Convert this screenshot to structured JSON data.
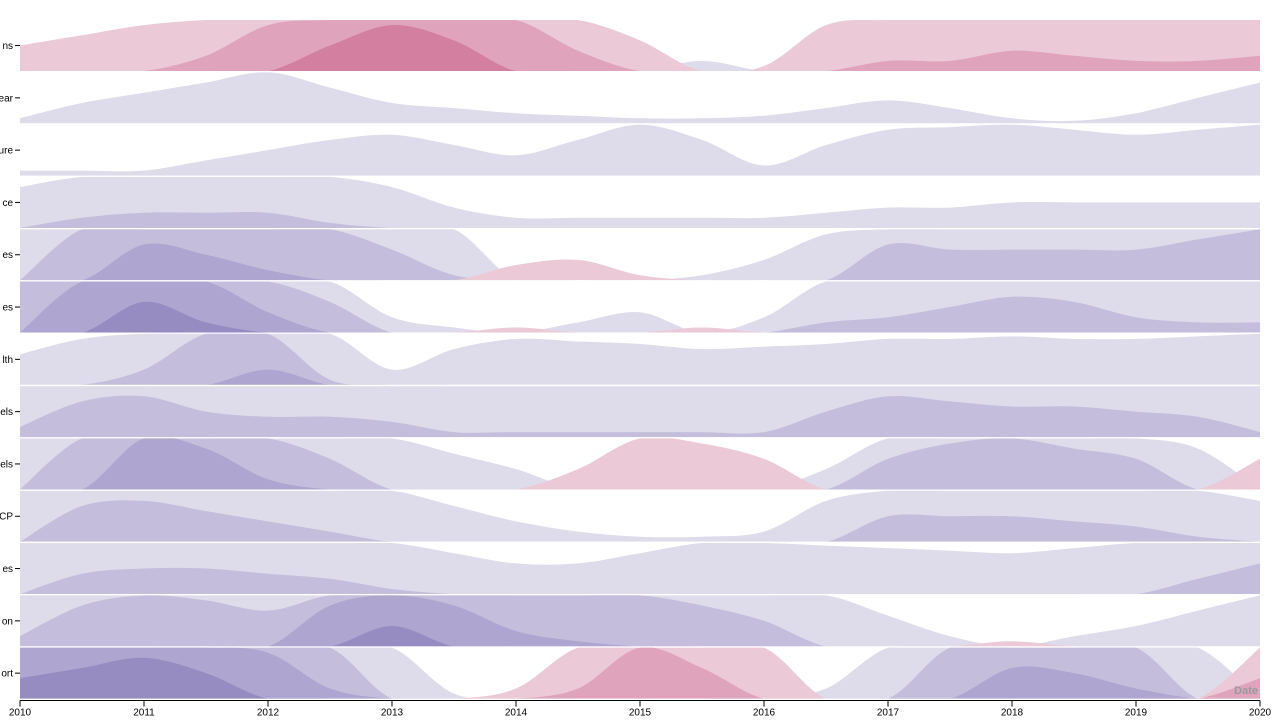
{
  "chart_data": {
    "type": "horizon",
    "x_axis_title": "Date",
    "x_domain": [
      "2010",
      "2020"
    ],
    "x_ticks": [
      "2010",
      "2011",
      "2012",
      "2013",
      "2014",
      "2015",
      "2016",
      "2017",
      "2018",
      "2019",
      "2020"
    ],
    "band_colors": {
      "negative": [
        "#dedbeb",
        "#c4bedc",
        "#aea5d0",
        "#968cc2"
      ],
      "positive": [
        "#ebc9d6",
        "#dfa4bb",
        "#d380a0"
      ]
    },
    "y_band_size": 1,
    "sample_years": [
      2010,
      2010.5,
      2011,
      2011.5,
      2012,
      2012.5,
      2013,
      2013.5,
      2014,
      2014.5,
      2015,
      2015.5,
      2016,
      2016.5,
      2017,
      2017.5,
      2018,
      2018.5,
      2019,
      2019.5,
      2020
    ],
    "series": [
      {
        "label": "ns",
        "values": [
          0.5,
          0.7,
          0.9,
          1.3,
          1.9,
          2.5,
          2.9,
          2.6,
          2.0,
          1.4,
          0.6,
          -0.2,
          0.1,
          0.9,
          1.2,
          1.2,
          1.4,
          1.3,
          1.2,
          1.2,
          1.3
        ]
      },
      {
        "label": "ear",
        "values": [
          -0.1,
          -0.4,
          -0.6,
          -0.8,
          -1.0,
          -0.7,
          -0.4,
          -0.3,
          -0.2,
          -0.15,
          -0.1,
          -0.1,
          -0.15,
          -0.3,
          -0.45,
          -0.3,
          -0.1,
          -0.05,
          -0.2,
          -0.5,
          -0.8
        ]
      },
      {
        "label": "ure",
        "values": [
          -0.1,
          -0.1,
          -0.1,
          -0.3,
          -0.5,
          -0.7,
          -0.8,
          -0.6,
          -0.4,
          -0.7,
          -1.0,
          -0.7,
          -0.2,
          -0.6,
          -0.9,
          -0.95,
          -1.0,
          -0.9,
          -0.8,
          -0.9,
          -1.0
        ]
      },
      {
        "label": "ce",
        "values": [
          -0.8,
          -1.2,
          -1.3,
          -1.3,
          -1.3,
          -1.1,
          -0.8,
          -0.4,
          -0.2,
          -0.2,
          -0.2,
          -0.2,
          -0.2,
          -0.3,
          -0.4,
          -0.4,
          -0.5,
          -0.5,
          -0.5,
          -0.5,
          -0.5
        ]
      },
      {
        "label": "es",
        "values": [
          -1.0,
          -2.0,
          -2.7,
          -2.5,
          -2.2,
          -2.0,
          -1.6,
          -1.1,
          0.3,
          0.4,
          0.1,
          -0.1,
          -0.4,
          -0.9,
          -1.7,
          -1.6,
          -1.6,
          -1.6,
          -1.6,
          -1.8,
          -2.0
        ]
      },
      {
        "label": "es",
        "values": [
          -2.0,
          -3.0,
          -3.6,
          -3.2,
          -2.4,
          -1.6,
          -0.3,
          -0.1,
          0.1,
          -0.2,
          -0.4,
          0.1,
          -0.3,
          -1.2,
          -1.3,
          -1.5,
          -1.7,
          -1.6,
          -1.3,
          -1.2,
          -1.2
        ]
      },
      {
        "label": "lth",
        "values": [
          -0.6,
          -0.9,
          -1.3,
          -2.0,
          -2.3,
          -1.1,
          -0.3,
          -0.7,
          -0.9,
          -0.85,
          -0.8,
          -0.7,
          -0.75,
          -0.8,
          -0.9,
          -0.9,
          -0.95,
          -0.9,
          -0.9,
          -0.95,
          -1.0
        ]
      },
      {
        "label": "els",
        "values": [
          -1.2,
          -1.7,
          -1.8,
          -1.5,
          -1.4,
          -1.4,
          -1.3,
          -1.1,
          -1.1,
          -1.1,
          -1.1,
          -1.1,
          -1.1,
          -1.5,
          -1.8,
          -1.7,
          -1.6,
          -1.6,
          -1.5,
          -1.4,
          -1.1
        ]
      },
      {
        "label": "els",
        "values": [
          -1.0,
          -2.0,
          -3.0,
          -2.8,
          -2.2,
          -1.6,
          -1.0,
          -0.7,
          -0.4,
          0.4,
          1.0,
          0.9,
          0.6,
          -0.4,
          -1.6,
          -1.9,
          -2.0,
          -1.8,
          -1.6,
          -0.8,
          0.6
        ]
      },
      {
        "label": "CP",
        "values": [
          -1.0,
          -1.7,
          -1.8,
          -1.6,
          -1.4,
          -1.2,
          -1.0,
          -0.7,
          -0.4,
          -0.2,
          -0.1,
          -0.1,
          -0.2,
          -0.8,
          -1.5,
          -1.5,
          -1.5,
          -1.4,
          -1.3,
          -1.1,
          -0.8
        ]
      },
      {
        "label": "es",
        "values": [
          -1.0,
          -1.4,
          -1.5,
          -1.5,
          -1.4,
          -1.3,
          -1.1,
          -0.8,
          -0.6,
          -0.6,
          -0.8,
          -1.0,
          -1.0,
          -0.95,
          -0.9,
          -0.85,
          -0.8,
          -0.9,
          -1.0,
          -1.3,
          -1.6
        ]
      },
      {
        "label": "on",
        "values": [
          -1.2,
          -1.8,
          -2.0,
          -1.9,
          -1.7,
          -2.8,
          -3.4,
          -2.8,
          -2.3,
          -2.1,
          -2.0,
          -1.8,
          -1.5,
          -1.0,
          -0.6,
          -0.2,
          0.1,
          -0.2,
          -0.4,
          -0.7,
          -1.0
        ]
      },
      {
        "label": "ort",
        "values": [
          -3.4,
          -3.6,
          -3.8,
          -3.5,
          -2.9,
          -2.2,
          -1.0,
          -0.1,
          0.2,
          1.2,
          2.0,
          1.6,
          1.0,
          -0.2,
          -1.0,
          -2.0,
          -2.6,
          -2.5,
          -2.2,
          -1.0,
          1.4
        ]
      }
    ]
  }
}
